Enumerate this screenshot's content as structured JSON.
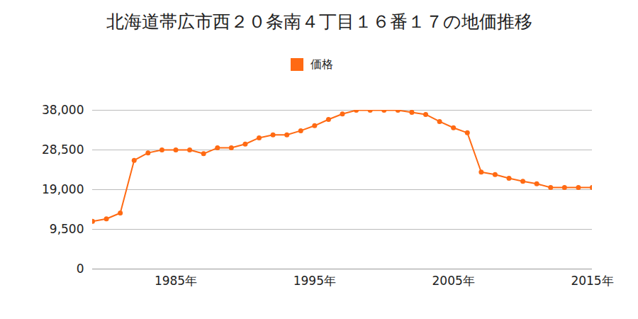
{
  "chart_data": {
    "type": "line",
    "title": "北海道帯広市西２０条南４丁目１６番１７の地価推移",
    "x": [
      1979,
      1980,
      1981,
      1982,
      1983,
      1984,
      1985,
      1986,
      1987,
      1988,
      1989,
      1990,
      1991,
      1992,
      1993,
      1994,
      1995,
      1996,
      1997,
      1998,
      1999,
      2000,
      2001,
      2002,
      2003,
      2004,
      2005,
      2006,
      2007,
      2008,
      2009,
      2010,
      2011,
      2012,
      2013,
      2014,
      2015
    ],
    "series": [
      {
        "name": "価格",
        "color": "#ff6a13",
        "marker": "circle",
        "values": [
          11400,
          12000,
          13400,
          26000,
          27800,
          28500,
          28500,
          28500,
          27600,
          29000,
          29000,
          29900,
          31400,
          32100,
          32100,
          33100,
          34300,
          35800,
          37100,
          38000,
          38000,
          38000,
          38000,
          37500,
          37000,
          35300,
          33800,
          32600,
          23200,
          22600,
          21700,
          21000,
          20400,
          19500,
          19500,
          19500,
          19500
        ]
      }
    ],
    "xlim": [
      1979,
      2015
    ],
    "xticks": [
      {
        "value": 1985,
        "label": "1985年"
      },
      {
        "value": 1995,
        "label": "1995年"
      },
      {
        "value": 2005,
        "label": "2005年"
      },
      {
        "value": 2015,
        "label": "2015年"
      }
    ],
    "ylim": [
      0,
      38000
    ],
    "yticks": [
      0,
      {
        "value": 9500,
        "label": "9,500"
      },
      {
        "value": 19000,
        "label": "19,000"
      },
      {
        "value": 28500,
        "label": "28,500"
      },
      {
        "value": 38000,
        "label": "38,000"
      }
    ],
    "grid": true,
    "legend": "top"
  }
}
